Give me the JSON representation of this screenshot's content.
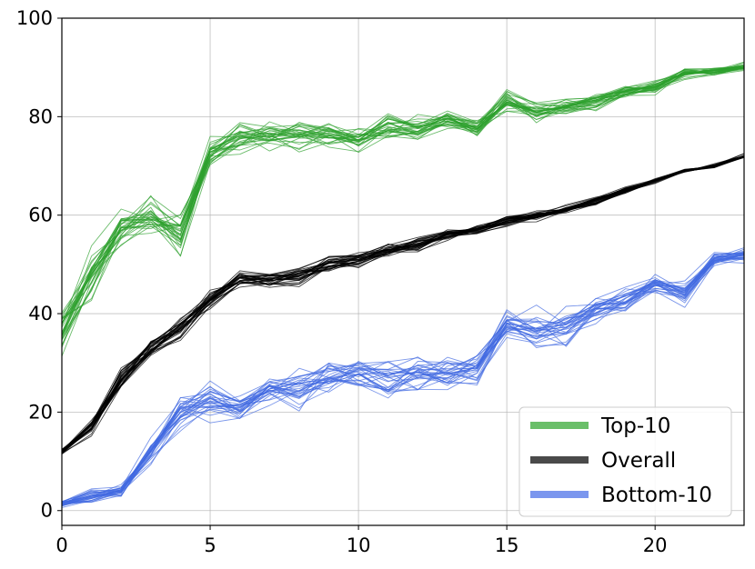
{
  "chart_data": {
    "type": "line",
    "title": "",
    "xlabel": "",
    "ylabel": "",
    "xlim": [
      0,
      23
    ],
    "ylim": [
      -3,
      100
    ],
    "grid": true,
    "legend_position": "bottom-right",
    "x_ticks": [
      0,
      5,
      10,
      15,
      20
    ],
    "y_ticks": [
      0,
      20,
      40,
      60,
      80,
      100
    ],
    "x_tick_labels": [
      "0",
      "5",
      "10",
      "15",
      "20"
    ],
    "y_tick_labels": [
      "0",
      "20",
      "40",
      "60",
      "80",
      "100"
    ],
    "x": [
      0,
      1,
      2,
      3,
      4,
      5,
      6,
      7,
      8,
      9,
      10,
      11,
      12,
      13,
      14,
      15,
      16,
      17,
      18,
      19,
      20,
      21,
      22,
      23
    ],
    "series": [
      {
        "name": "Top-10",
        "color": "#2ca02c",
        "legend_color": "#6abf69",
        "runs": 30,
        "mean": [
          36,
          47,
          57,
          60,
          56,
          73,
          76,
          76,
          76,
          76,
          75,
          78,
          77,
          79,
          78,
          83,
          81,
          82,
          83,
          85,
          86,
          89,
          89,
          90
        ],
        "spread": [
          3,
          4,
          3,
          3,
          3,
          2.5,
          2.5,
          2,
          2,
          2,
          2,
          2,
          2,
          1.5,
          1.5,
          1.5,
          1.5,
          1.2,
          1.2,
          1,
          1,
          0.8,
          0.7,
          0.6
        ]
      },
      {
        "name": "Overall",
        "color": "#000000",
        "legend_color": "#4a4a4a",
        "runs": 30,
        "mean": [
          12,
          17,
          27,
          33,
          37,
          43,
          47,
          47,
          48,
          50,
          51,
          53,
          54,
          56,
          57,
          59,
          60,
          61,
          63,
          65,
          67,
          69,
          70,
          72
        ],
        "spread": [
          0.5,
          1,
          1.5,
          1.5,
          1.5,
          1.5,
          1.2,
          1.2,
          1.2,
          1.2,
          1.2,
          1,
          1,
          0.8,
          0.8,
          0.8,
          0.8,
          0.7,
          0.6,
          0.5,
          0.4,
          0.3,
          0.3,
          0.3
        ]
      },
      {
        "name": "Bottom-10",
        "color": "#4169e1",
        "legend_color": "#7b96ee",
        "runs": 30,
        "mean": [
          1.5,
          3,
          4,
          12,
          20,
          23,
          21,
          25,
          25,
          27,
          28,
          27,
          28,
          28,
          29,
          38,
          36,
          37,
          41,
          43,
          46,
          44,
          51,
          52
        ],
        "spread": [
          0.5,
          1,
          1,
          2,
          2.5,
          2.5,
          2.5,
          2.5,
          2.5,
          2.5,
          2.5,
          2.5,
          2.5,
          2.5,
          2.5,
          2.5,
          2.5,
          2.5,
          2,
          2,
          1.5,
          1.5,
          1.2,
          1
        ]
      }
    ]
  }
}
